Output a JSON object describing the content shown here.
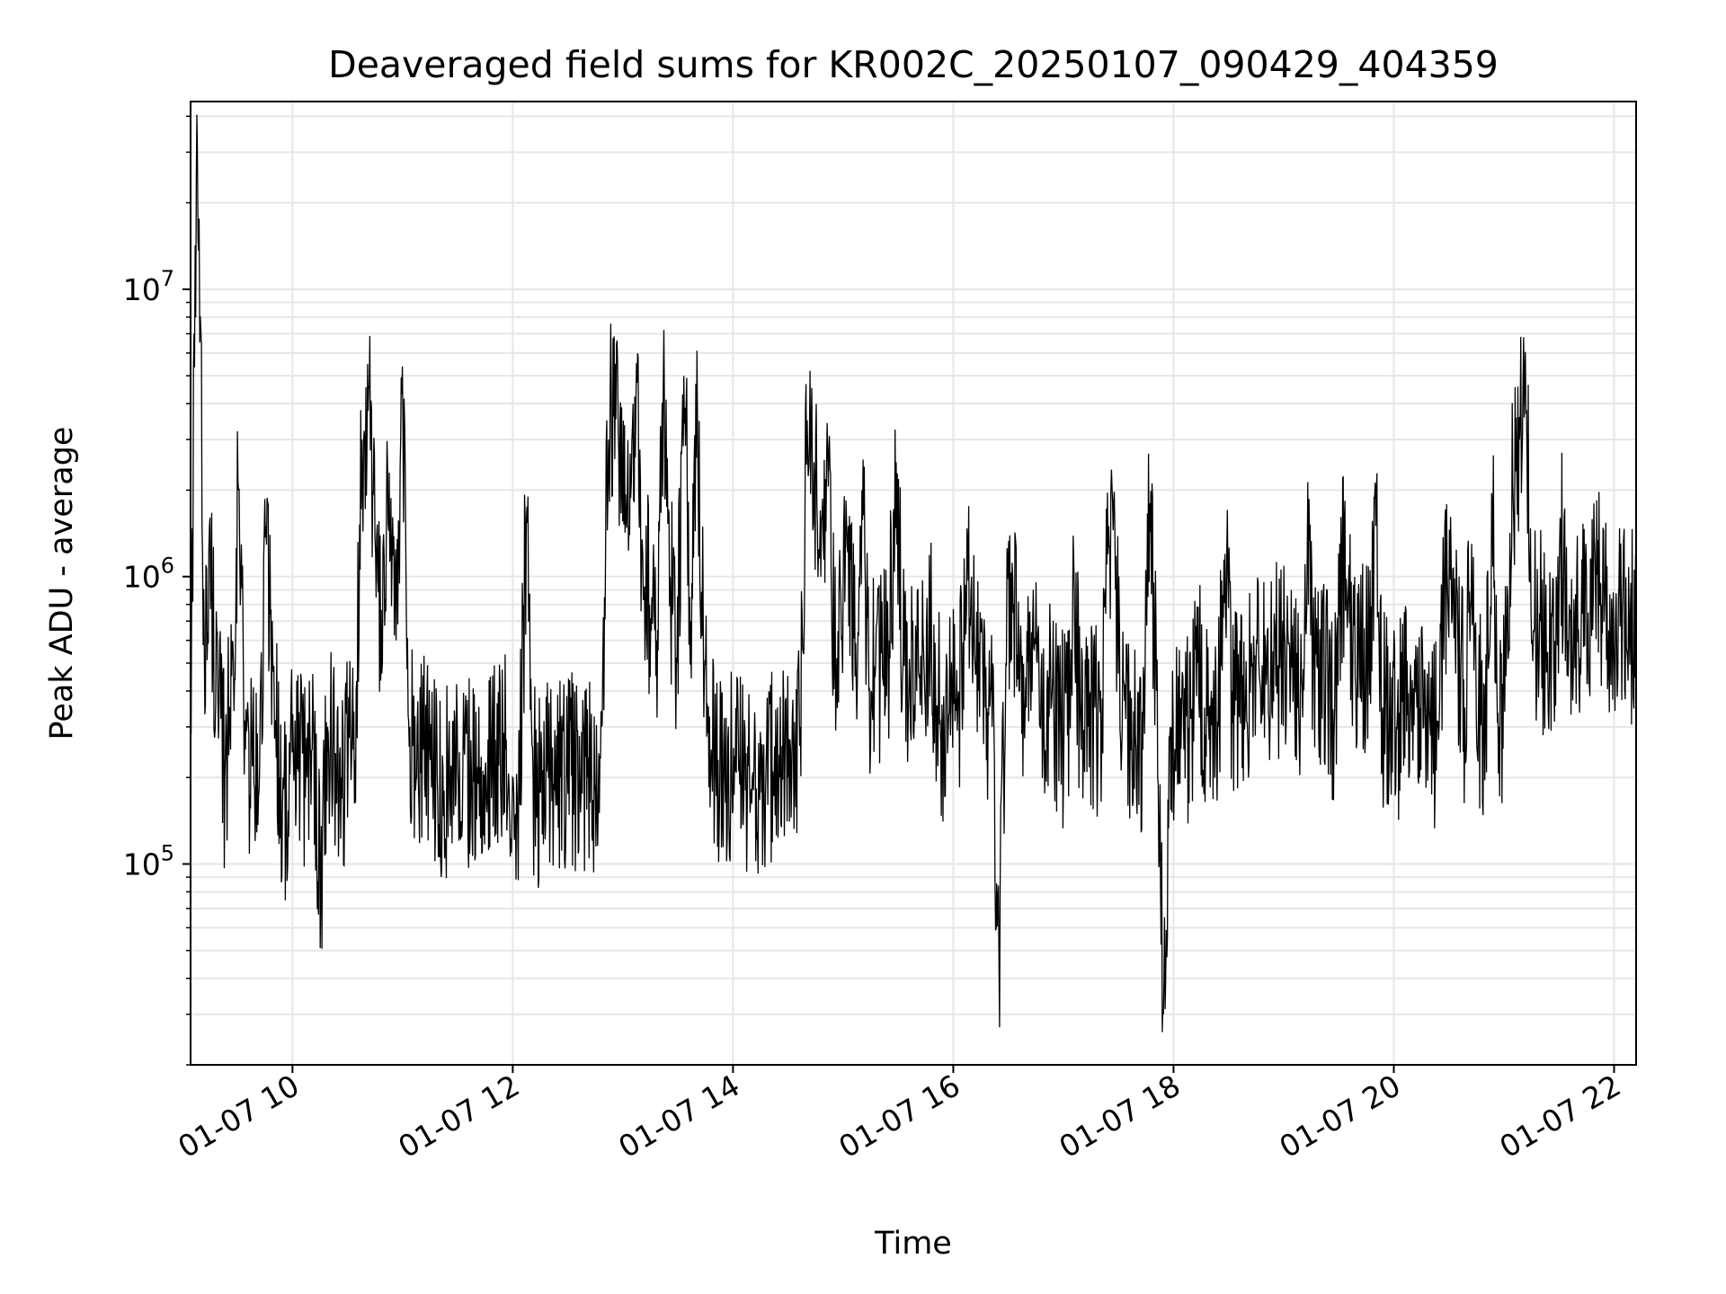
{
  "chart_data": {
    "type": "line",
    "title": "Deaveraged field sums for KR002C_20250107_090429_404359",
    "xlabel": "Time",
    "ylabel": "Peak ADU - average",
    "yscale": "log",
    "grid": true,
    "line_color": "#000000",
    "grid_color": "#e6e6e6",
    "xlim": [
      "2025-01-07T09:04:29",
      "2025-01-07T22:12:00"
    ],
    "ylim": [
      20000,
      45000000
    ],
    "x_ticks": [
      {
        "label": "01-07 10",
        "t": "2025-01-07T10:00:00"
      },
      {
        "label": "01-07 12",
        "t": "2025-01-07T12:00:00"
      },
      {
        "label": "01-07 14",
        "t": "2025-01-07T14:00:00"
      },
      {
        "label": "01-07 16",
        "t": "2025-01-07T16:00:00"
      },
      {
        "label": "01-07 18",
        "t": "2025-01-07T18:00:00"
      },
      {
        "label": "01-07 20",
        "t": "2025-01-07T20:00:00"
      },
      {
        "label": "01-07 22",
        "t": "2025-01-07T22:00:00"
      }
    ],
    "y_ticks": [
      {
        "base": "10",
        "exp": "5",
        "value": 100000
      },
      {
        "base": "10",
        "exp": "6",
        "value": 1000000
      },
      {
        "base": "10",
        "exp": "7",
        "value": 10000000
      }
    ],
    "series": [
      {
        "x_start": "2025-01-07T09:04:29",
        "x_end": "2025-01-07T22:12:00",
        "values": [
          400000,
          30000000,
          600000,
          1000000,
          350000,
          200000,
          450000,
          2000000,
          250000,
          220000,
          180000,
          1500000,
          500000,
          200000,
          150000,
          250000,
          220000,
          200000,
          260000,
          90000,
          300000,
          240000,
          200000,
          250000,
          230000,
          3000000,
          4500000,
          1200000,
          500000,
          2300000,
          600000,
          3500000,
          300000,
          200000,
          250000,
          230000,
          200000,
          180000,
          220000,
          210000,
          240000,
          200000,
          190000,
          210000,
          230000,
          220000,
          250000,
          200000,
          180000,
          1500000,
          200000,
          180000,
          210000,
          190000,
          200000,
          220000,
          210000,
          180000,
          200000,
          190000,
          300000,
          3000000,
          5500000,
          2000000,
          1500000,
          4000000,
          1200000,
          800000,
          600000,
          4500000,
          1000000,
          500000,
          5000000,
          700000,
          3500000,
          450000,
          250000,
          230000,
          200000,
          220000,
          210000,
          180000,
          200000,
          190000,
          220000,
          210000,
          200000,
          250000,
          230000,
          300000,
          3500000,
          2500000,
          1000000,
          2800000,
          500000,
          600000,
          1500000,
          450000,
          2000000,
          400000,
          500000,
          450000,
          600000,
          2500000,
          500000,
          450000,
          400000,
          550000,
          700000,
          350000,
          300000,
          400000,
          350000,
          600000,
          1000000,
          400000,
          350000,
          300000,
          45000,
          500000,
          1000000,
          400000,
          350000,
          900000,
          300000,
          400000,
          350000,
          300000,
          280000,
          900000,
          250000,
          300000,
          350000,
          280000,
          1500000,
          900000,
          300000,
          300000,
          250000,
          250000,
          1800000,
          400000,
          30000,
          300000,
          280000,
          250000,
          320000,
          500000,
          350000,
          400000,
          300000,
          1200000,
          400000,
          350000,
          380000,
          500000,
          450000,
          420000,
          550000,
          480000,
          500000,
          450000,
          400000,
          1200000,
          500000,
          450000,
          400000,
          350000,
          1100000,
          900000,
          450000,
          500000,
          600000,
          1500000,
          350000,
          320000,
          300000,
          350000,
          400000,
          350000,
          300000,
          280000,
          300000,
          800000,
          1200000,
          550000,
          350000,
          1300000,
          350000,
          320000,
          1800000,
          300000,
          450000,
          2100000,
          3000000,
          3800000,
          650000,
          700000,
          500000,
          450000,
          1500000,
          600000,
          650000,
          700000,
          750000,
          1200000,
          800000,
          650000,
          700000,
          750000,
          650000,
          700000
        ]
      }
    ]
  }
}
